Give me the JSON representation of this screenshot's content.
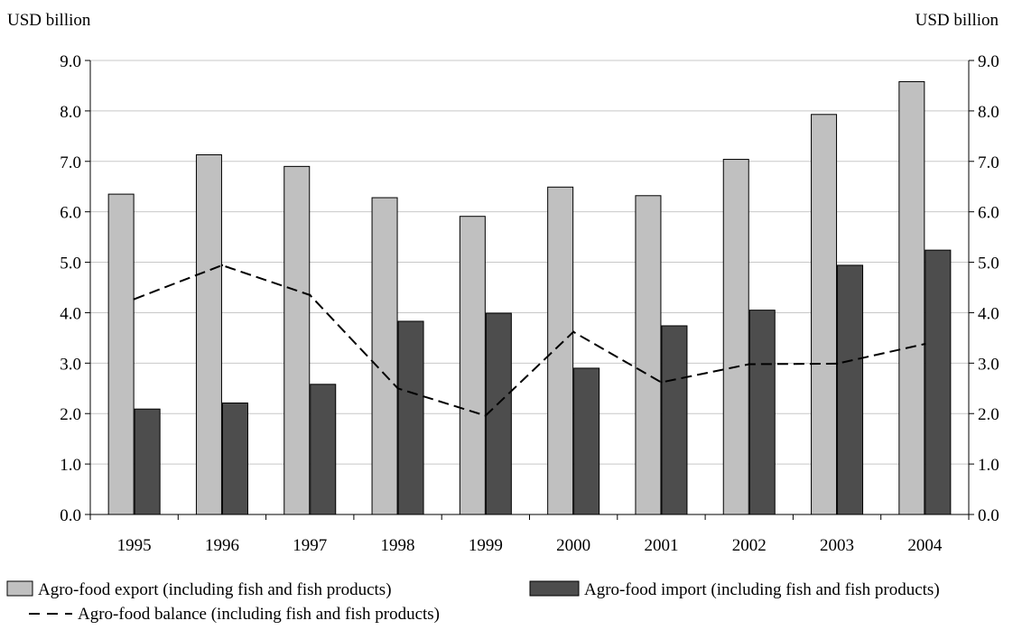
{
  "chart_data": {
    "type": "bar",
    "categories": [
      "1995",
      "1996",
      "1997",
      "1998",
      "1999",
      "2000",
      "2001",
      "2002",
      "2003",
      "2004"
    ],
    "ylabel_left": "USD billion",
    "ylabel_right": "USD billion",
    "ylim": [
      0,
      9
    ],
    "yticks": [
      "0.0",
      "1.0",
      "2.0",
      "3.0",
      "4.0",
      "5.0",
      "6.0",
      "7.0",
      "8.0",
      "9.0"
    ],
    "grid": true,
    "legend_position": "bottom",
    "series": [
      {
        "name": "Agro-food export (including fish and fish products)",
        "type": "bar",
        "color": "#c0c0c0",
        "values": [
          6.35,
          7.13,
          6.9,
          6.28,
          5.91,
          6.49,
          6.32,
          7.04,
          7.93,
          8.58
        ]
      },
      {
        "name": "Agro-food import (including fish and fish products)",
        "type": "bar",
        "color": "#4d4d4d",
        "values": [
          2.09,
          2.21,
          2.58,
          3.83,
          3.99,
          2.9,
          3.74,
          4.05,
          4.94,
          5.24
        ]
      },
      {
        "name": "Agro-food balance (including fish and fish products)",
        "type": "line",
        "style": "dashed",
        "color": "#000000",
        "values": [
          4.27,
          4.94,
          4.35,
          2.5,
          1.96,
          3.62,
          2.62,
          2.98,
          2.99,
          3.38
        ]
      }
    ]
  }
}
